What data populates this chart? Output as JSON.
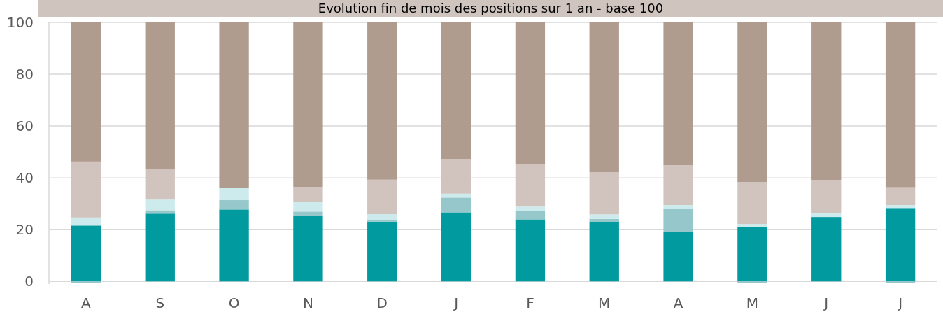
{
  "chart_data": {
    "type": "bar",
    "stacked": true,
    "title": "Evolution fin de mois des positions sur 1 an - base 100",
    "categories": [
      "A",
      "S",
      "O",
      "N",
      "D",
      "J",
      "F",
      "M",
      "A",
      "M",
      "J",
      "J"
    ],
    "series": [
      {
        "color": "#019a9e",
        "values": [
          21.6,
          26.2,
          27.8,
          25.2,
          23.1,
          26.7,
          24.0,
          23.0,
          19.2,
          20.9,
          24.9,
          28.1
        ]
      },
      {
        "color": "#96c7ca",
        "values": [
          -0.5,
          1.3,
          3.6,
          1.8,
          0.6,
          5.7,
          3.3,
          1.2,
          8.7,
          -0.5,
          0,
          -0.5
        ]
      },
      {
        "color": "#cdebec",
        "values": [
          3.1,
          4.1,
          4.6,
          3.6,
          2.3,
          1.5,
          1.6,
          1.7,
          1.6,
          1.3,
          1.4,
          1.4
        ]
      },
      {
        "color": "#d1c4bf",
        "values": [
          21.6,
          11.6,
          0,
          5.9,
          13.3,
          13.4,
          16.4,
          16.3,
          15.4,
          16.2,
          12.7,
          6.6
        ]
      },
      {
        "color": "#b09b8f",
        "values": [
          53.7,
          56.8,
          64.0,
          63.5,
          60.7,
          52.7,
          54.7,
          57.8,
          55.1,
          61.6,
          61.0,
          63.9
        ]
      }
    ],
    "ylim": [
      -1,
      100
    ],
    "yticks": [
      0,
      20,
      40,
      60,
      80,
      100
    ],
    "grid": "y"
  }
}
